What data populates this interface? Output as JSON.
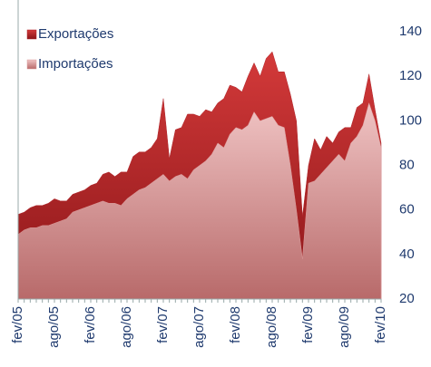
{
  "chart_data": {
    "type": "area",
    "categories": [
      "fev/05",
      null,
      null,
      null,
      null,
      null,
      "ago/05",
      null,
      null,
      null,
      null,
      null,
      "fev/06",
      null,
      null,
      null,
      null,
      null,
      "ago/06",
      null,
      null,
      null,
      null,
      null,
      "fev/07",
      null,
      null,
      null,
      null,
      null,
      "ago/07",
      null,
      null,
      null,
      null,
      null,
      "fev/08",
      null,
      null,
      null,
      null,
      null,
      "ago/08",
      null,
      null,
      null,
      null,
      null,
      "fev/09",
      null,
      null,
      null,
      null,
      null,
      "ago/09",
      null,
      null,
      null,
      null,
      null,
      "fev/10"
    ],
    "series": [
      {
        "name": "Exportações",
        "color": "#b0242a",
        "values": [
          58,
          59,
          61,
          62,
          62,
          63,
          65,
          64,
          64,
          67,
          68,
          69,
          71,
          72,
          76,
          77,
          75,
          77,
          77,
          84,
          86,
          86,
          88,
          92,
          110,
          83,
          96,
          97,
          103,
          103,
          102,
          105,
          104,
          108,
          110,
          116,
          115,
          113,
          120,
          126,
          120,
          128,
          131,
          122,
          122,
          112,
          100,
          57,
          80,
          92,
          87,
          93,
          90,
          95,
          97,
          97,
          106,
          108,
          121,
          105,
          90
        ]
      },
      {
        "name": "Importações",
        "color": "#dc9c9c",
        "values": [
          49,
          51,
          52,
          52,
          53,
          53,
          54,
          55,
          56,
          59,
          60,
          61,
          62,
          63,
          64,
          63,
          63,
          62,
          65,
          67,
          69,
          70,
          72,
          74,
          76,
          73,
          75,
          76,
          74,
          78,
          80,
          82,
          85,
          90,
          88,
          94,
          97,
          96,
          98,
          104,
          100,
          101,
          102,
          98,
          97,
          80,
          60,
          38,
          72,
          73,
          76,
          79,
          82,
          85,
          82,
          90,
          93,
          98,
          108,
          100,
          88
        ]
      }
    ],
    "ylim": [
      20,
      140
    ],
    "yticks": [
      20,
      40,
      60,
      80,
      100,
      120,
      140
    ],
    "legend": "top-left"
  }
}
